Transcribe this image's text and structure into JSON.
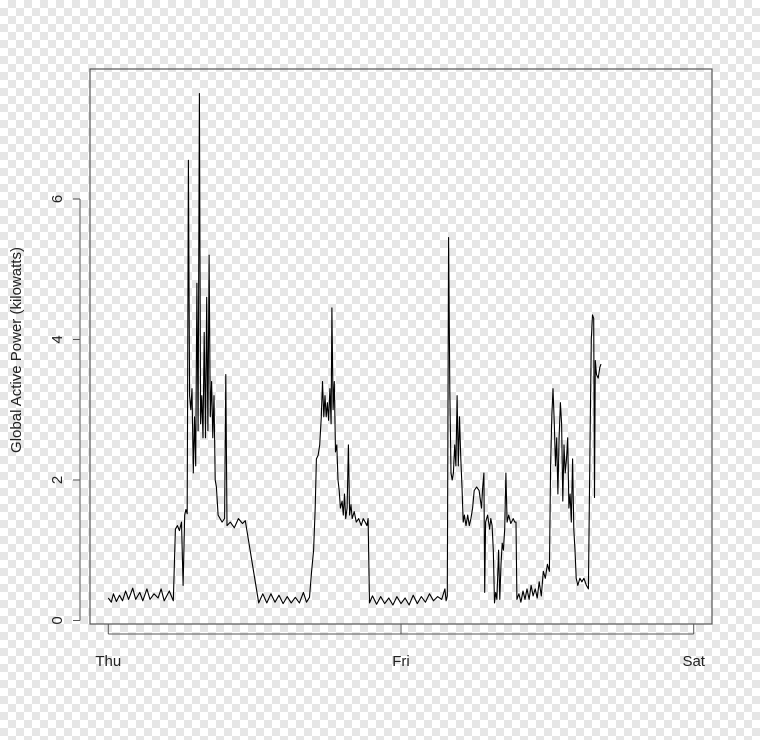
{
  "chart_data": {
    "type": "line",
    "title": "",
    "xlabel": "",
    "ylabel": "Global Active Power (kilowatts)",
    "x_ticks": [
      "Thu",
      "Fri",
      "Sat"
    ],
    "x_tick_values": [
      0,
      1440,
      2880
    ],
    "x_unit": "minutes since Thu 00:00",
    "xlim": [
      -90,
      2970
    ],
    "ylim": [
      -0.05,
      7.85
    ],
    "y_ticks": [
      0,
      2,
      4,
      6
    ],
    "grid": false,
    "legend": "none",
    "colors": {
      "line": "#000000",
      "frame": "#555555"
    },
    "series": [
      {
        "points": [
          [
            0,
            0.32
          ],
          [
            15,
            0.26
          ],
          [
            25,
            0.38
          ],
          [
            40,
            0.27
          ],
          [
            55,
            0.36
          ],
          [
            70,
            0.28
          ],
          [
            85,
            0.42
          ],
          [
            100,
            0.3
          ],
          [
            120,
            0.46
          ],
          [
            135,
            0.3
          ],
          [
            155,
            0.4
          ],
          [
            170,
            0.28
          ],
          [
            190,
            0.45
          ],
          [
            205,
            0.3
          ],
          [
            225,
            0.38
          ],
          [
            245,
            0.32
          ],
          [
            260,
            0.45
          ],
          [
            275,
            0.28
          ],
          [
            300,
            0.42
          ],
          [
            320,
            0.28
          ],
          [
            330,
            1.3
          ],
          [
            340,
            1.35
          ],
          [
            350,
            1.28
          ],
          [
            360,
            1.4
          ],
          [
            368,
            0.5
          ],
          [
            376,
            1.5
          ],
          [
            382,
            1.58
          ],
          [
            388,
            1.52
          ],
          [
            394,
            6.55
          ],
          [
            400,
            3.2
          ],
          [
            406,
            3.0
          ],
          [
            412,
            3.3
          ],
          [
            418,
            2.1
          ],
          [
            424,
            2.9
          ],
          [
            430,
            2.2
          ],
          [
            436,
            4.8
          ],
          [
            442,
            2.7
          ],
          [
            448,
            7.5
          ],
          [
            454,
            2.8
          ],
          [
            460,
            3.2
          ],
          [
            466,
            2.6
          ],
          [
            472,
            4.1
          ],
          [
            478,
            2.6
          ],
          [
            484,
            4.6
          ],
          [
            490,
            2.7
          ],
          [
            496,
            5.2
          ],
          [
            502,
            2.9
          ],
          [
            508,
            3.4
          ],
          [
            514,
            2.6
          ],
          [
            520,
            3.2
          ],
          [
            526,
            2.0
          ],
          [
            532,
            1.9
          ],
          [
            540,
            1.5
          ],
          [
            550,
            1.45
          ],
          [
            560,
            1.4
          ],
          [
            572,
            1.45
          ],
          [
            578,
            3.5
          ],
          [
            584,
            1.35
          ],
          [
            600,
            1.4
          ],
          [
            620,
            1.32
          ],
          [
            640,
            1.45
          ],
          [
            660,
            1.38
          ],
          [
            674,
            1.42
          ],
          [
            740,
            0.25
          ],
          [
            760,
            0.38
          ],
          [
            780,
            0.25
          ],
          [
            800,
            0.38
          ],
          [
            820,
            0.26
          ],
          [
            840,
            0.36
          ],
          [
            860,
            0.24
          ],
          [
            880,
            0.34
          ],
          [
            900,
            0.25
          ],
          [
            920,
            0.33
          ],
          [
            940,
            0.25
          ],
          [
            960,
            0.4
          ],
          [
            975,
            0.26
          ],
          [
            990,
            0.33
          ],
          [
            1000,
            0.7
          ],
          [
            1010,
            1.0
          ],
          [
            1018,
            1.6
          ],
          [
            1024,
            2.3
          ],
          [
            1032,
            2.35
          ],
          [
            1040,
            2.5
          ],
          [
            1048,
            2.9
          ],
          [
            1054,
            3.4
          ],
          [
            1060,
            2.9
          ],
          [
            1066,
            3.2
          ],
          [
            1072,
            2.9
          ],
          [
            1078,
            3.1
          ],
          [
            1084,
            2.85
          ],
          [
            1090,
            3.3
          ],
          [
            1096,
            2.8
          ],
          [
            1100,
            4.45
          ],
          [
            1106,
            3.0
          ],
          [
            1112,
            3.4
          ],
          [
            1118,
            2.4
          ],
          [
            1124,
            2.5
          ],
          [
            1130,
            2.0
          ],
          [
            1136,
            1.85
          ],
          [
            1142,
            1.6
          ],
          [
            1150,
            1.7
          ],
          [
            1156,
            1.5
          ],
          [
            1162,
            1.8
          ],
          [
            1168,
            1.45
          ],
          [
            1175,
            1.6
          ],
          [
            1181,
            2.5
          ],
          [
            1187,
            1.5
          ],
          [
            1194,
            1.65
          ],
          [
            1200,
            1.45
          ],
          [
            1210,
            1.55
          ],
          [
            1220,
            1.4
          ],
          [
            1232,
            1.45
          ],
          [
            1244,
            1.35
          ],
          [
            1254,
            1.45
          ],
          [
            1264,
            1.4
          ],
          [
            1272,
            1.35
          ],
          [
            1278,
            1.45
          ],
          [
            1285,
            0.25
          ],
          [
            1300,
            0.35
          ],
          [
            1320,
            0.23
          ],
          [
            1340,
            0.34
          ],
          [
            1360,
            0.24
          ],
          [
            1380,
            0.32
          ],
          [
            1400,
            0.22
          ],
          [
            1420,
            0.34
          ],
          [
            1440,
            0.24
          ],
          [
            1460,
            0.32
          ],
          [
            1480,
            0.22
          ],
          [
            1500,
            0.36
          ],
          [
            1520,
            0.24
          ],
          [
            1540,
            0.34
          ],
          [
            1560,
            0.26
          ],
          [
            1580,
            0.38
          ],
          [
            1600,
            0.28
          ],
          [
            1620,
            0.34
          ],
          [
            1640,
            0.3
          ],
          [
            1656,
            0.45
          ],
          [
            1662,
            0.28
          ],
          [
            1668,
            0.35
          ],
          [
            1674,
            5.45
          ],
          [
            1680,
            3.3
          ],
          [
            1686,
            2.1
          ],
          [
            1692,
            2.0
          ],
          [
            1698,
            2.1
          ],
          [
            1704,
            2.5
          ],
          [
            1710,
            2.2
          ],
          [
            1716,
            3.2
          ],
          [
            1722,
            2.2
          ],
          [
            1728,
            2.9
          ],
          [
            1734,
            2.3
          ],
          [
            1740,
            1.9
          ],
          [
            1746,
            1.4
          ],
          [
            1752,
            1.5
          ],
          [
            1760,
            1.35
          ],
          [
            1768,
            1.5
          ],
          [
            1776,
            1.35
          ],
          [
            1784,
            1.45
          ],
          [
            1792,
            1.6
          ],
          [
            1800,
            1.85
          ],
          [
            1812,
            1.9
          ],
          [
            1824,
            1.85
          ],
          [
            1836,
            1.6
          ],
          [
            1842,
            1.9
          ],
          [
            1848,
            2.1
          ],
          [
            1852,
            0.4
          ],
          [
            1856,
            1.4
          ],
          [
            1866,
            1.5
          ],
          [
            1876,
            1.3
          ],
          [
            1882,
            1.45
          ],
          [
            1888,
            1.35
          ],
          [
            1894,
            1.0
          ],
          [
            1900,
            0.25
          ],
          [
            1906,
            0.4
          ],
          [
            1912,
            0.3
          ],
          [
            1920,
            1.0
          ],
          [
            1926,
            0.3
          ],
          [
            1932,
            0.8
          ],
          [
            1938,
            1.1
          ],
          [
            1944,
            1.0
          ],
          [
            1950,
            1.3
          ],
          [
            1956,
            2.1
          ],
          [
            1962,
            1.4
          ],
          [
            1970,
            1.5
          ],
          [
            1980,
            1.38
          ],
          [
            1992,
            1.45
          ],
          [
            2000,
            1.4
          ],
          [
            2006,
            1.4
          ],
          [
            2010,
            0.3
          ],
          [
            2020,
            0.38
          ],
          [
            2030,
            0.26
          ],
          [
            2040,
            0.42
          ],
          [
            2050,
            0.3
          ],
          [
            2060,
            0.45
          ],
          [
            2070,
            0.3
          ],
          [
            2080,
            0.5
          ],
          [
            2090,
            0.35
          ],
          [
            2100,
            0.45
          ],
          [
            2110,
            0.32
          ],
          [
            2120,
            0.55
          ],
          [
            2130,
            0.35
          ],
          [
            2140,
            0.7
          ],
          [
            2150,
            0.6
          ],
          [
            2160,
            0.8
          ],
          [
            2170,
            0.7
          ],
          [
            2176,
            2.2
          ],
          [
            2182,
            2.9
          ],
          [
            2188,
            3.3
          ],
          [
            2194,
            2.8
          ],
          [
            2200,
            2.2
          ],
          [
            2206,
            2.6
          ],
          [
            2212,
            1.8
          ],
          [
            2218,
            2.6
          ],
          [
            2224,
            3.1
          ],
          [
            2230,
            2.8
          ],
          [
            2236,
            1.7
          ],
          [
            2242,
            2.5
          ],
          [
            2248,
            2.1
          ],
          [
            2254,
            2.3
          ],
          [
            2260,
            2.6
          ],
          [
            2266,
            1.6
          ],
          [
            2272,
            1.8
          ],
          [
            2278,
            1.4
          ],
          [
            2284,
            2.3
          ],
          [
            2290,
            1.3
          ],
          [
            2296,
            1.0
          ],
          [
            2302,
            0.6
          ],
          [
            2310,
            0.5
          ],
          [
            2320,
            0.6
          ],
          [
            2330,
            0.55
          ],
          [
            2340,
            0.6
          ],
          [
            2352,
            0.5
          ],
          [
            2362,
            0.45
          ],
          [
            2370,
            2.5
          ],
          [
            2376,
            4.0
          ],
          [
            2382,
            4.35
          ],
          [
            2388,
            4.3
          ],
          [
            2392,
            1.75
          ],
          [
            2396,
            3.7
          ],
          [
            2402,
            3.5
          ],
          [
            2410,
            3.45
          ],
          [
            2418,
            3.6
          ],
          [
            2424,
            3.65
          ]
        ]
      }
    ]
  }
}
